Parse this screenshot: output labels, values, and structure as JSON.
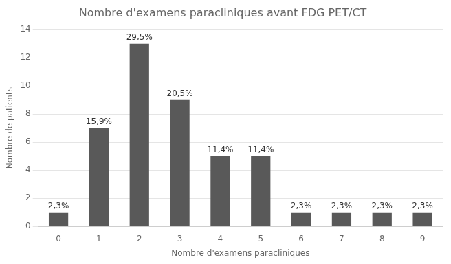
{
  "chart_data": {
    "type": "bar",
    "title": "Nombre d'examens paracliniques avant FDG PET/CT",
    "x_label": "Nombre d'examens paracliniques",
    "y_label": "Nombre de patients",
    "categories": [
      0,
      1,
      2,
      3,
      4,
      5,
      6,
      7,
      8,
      9
    ],
    "values": [
      1,
      7,
      13,
      9,
      5,
      5,
      1,
      1,
      1,
      1
    ],
    "annotations": [
      "2,3%",
      "15,9%",
      "29,5%",
      "20,5%",
      "11,4%",
      "11,4%",
      "2,3%",
      "2,3%",
      "2,3%",
      "2,3%"
    ],
    "color": "#595959",
    "ylim": [
      0,
      14
    ],
    "yticks": [
      0,
      2,
      4,
      6,
      8,
      10,
      12,
      14
    ],
    "grid": true
  }
}
